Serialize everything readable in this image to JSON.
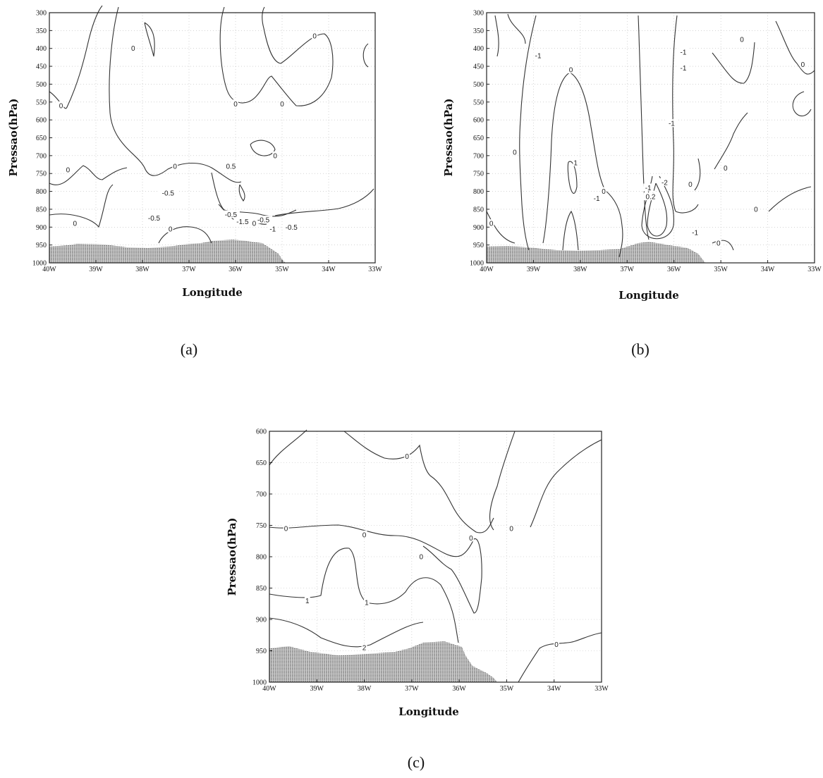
{
  "panel_labels": [
    "(a)",
    "(b)",
    "(c)"
  ],
  "chart_data": [
    {
      "type": "contour",
      "panel": "(a)",
      "xlabel": "Longitude",
      "ylabel": "Pressao(hPa)",
      "x_ticks": [
        "40W",
        "39W",
        "38W",
        "37W",
        "36W",
        "35W",
        "34W",
        "33W"
      ],
      "y_ticks": [
        "300",
        "350",
        "400",
        "450",
        "500",
        "550",
        "600",
        "650",
        "700",
        "750",
        "800",
        "850",
        "900",
        "950",
        "1000"
      ],
      "xlim": [
        -40,
        -33
      ],
      "ylim": [
        1000,
        300
      ],
      "contour_labels": [
        {
          "text": "0",
          "x": -39.75,
          "y": 560
        },
        {
          "text": "0",
          "x": -38.2,
          "y": 400
        },
        {
          "text": "0",
          "x": -36.0,
          "y": 555
        },
        {
          "text": "0",
          "x": -35.0,
          "y": 555
        },
        {
          "text": "0",
          "x": -34.3,
          "y": 365
        },
        {
          "text": "0",
          "x": -35.15,
          "y": 700
        },
        {
          "text": "0",
          "x": -39.6,
          "y": 740
        },
        {
          "text": "0",
          "x": -37.3,
          "y": 730
        },
        {
          "text": "0.5",
          "x": -36.1,
          "y": 730
        },
        {
          "text": "-0.5",
          "x": -37.45,
          "y": 805
        },
        {
          "text": "0",
          "x": -39.45,
          "y": 890
        },
        {
          "text": "-0.5",
          "x": -37.75,
          "y": 875
        },
        {
          "text": "-0.5",
          "x": -36.1,
          "y": 865
        },
        {
          "text": "-1.5",
          "x": -35.85,
          "y": 885
        },
        {
          "text": "-0.5",
          "x": -35.4,
          "y": 880
        },
        {
          "text": "-1",
          "x": -35.2,
          "y": 905
        },
        {
          "text": "-0.5",
          "x": -34.8,
          "y": 900
        },
        {
          "text": "0",
          "x": -35.6,
          "y": 890
        },
        {
          "text": "0",
          "x": -37.4,
          "y": 905
        }
      ]
    },
    {
      "type": "contour",
      "panel": "(b)",
      "xlabel": "Longitude",
      "ylabel": "Pressao(hPa)",
      "x_ticks": [
        "40W",
        "39W",
        "38W",
        "37W",
        "36W",
        "35W",
        "34W",
        "33W"
      ],
      "y_ticks": [
        "300",
        "350",
        "400",
        "450",
        "500",
        "550",
        "600",
        "650",
        "700",
        "750",
        "800",
        "850",
        "900",
        "950",
        "1000"
      ],
      "xlim": [
        -40,
        -33
      ],
      "ylim": [
        1000,
        300
      ],
      "contour_labels": [
        {
          "text": "-1",
          "x": -38.9,
          "y": 420
        },
        {
          "text": "0",
          "x": -38.2,
          "y": 460
        },
        {
          "text": "0",
          "x": -33.25,
          "y": 445
        },
        {
          "text": "0",
          "x": -34.55,
          "y": 375
        },
        {
          "text": "-1",
          "x": -35.8,
          "y": 410
        },
        {
          "text": "-1",
          "x": -35.8,
          "y": 455
        },
        {
          "text": "-1",
          "x": -36.05,
          "y": 610
        },
        {
          "text": "0",
          "x": -39.4,
          "y": 690
        },
        {
          "text": "1",
          "x": -38.1,
          "y": 720
        },
        {
          "text": "-1",
          "x": -37.65,
          "y": 820
        },
        {
          "text": "0",
          "x": -37.5,
          "y": 800
        },
        {
          "text": "0",
          "x": -34.9,
          "y": 735
        },
        {
          "text": "0",
          "x": -34.25,
          "y": 850
        },
        {
          "text": "-2",
          "x": -36.2,
          "y": 775
        },
        {
          "text": "0",
          "x": -35.65,
          "y": 780
        },
        {
          "text": "-1",
          "x": -36.55,
          "y": 790
        },
        {
          "text": "1",
          "x": -36.45,
          "y": 810
        },
        {
          "text": "0.2",
          "x": -36.5,
          "y": 815
        },
        {
          "text": "-1",
          "x": -35.55,
          "y": 915
        },
        {
          "text": "0",
          "x": -35.05,
          "y": 945
        },
        {
          "text": "0",
          "x": -39.9,
          "y": 890
        }
      ]
    },
    {
      "type": "contour",
      "panel": "(c)",
      "xlabel": "Longitude",
      "ylabel": "Pressao(hPa)",
      "x_ticks": [
        "40W",
        "39W",
        "38W",
        "37W",
        "36W",
        "35W",
        "34W",
        "33W"
      ],
      "y_ticks": [
        "600",
        "650",
        "700",
        "750",
        "800",
        "850",
        "900",
        "950",
        "1000"
      ],
      "xlim": [
        -40,
        -33
      ],
      "ylim": [
        1000,
        600
      ],
      "contour_labels": [
        {
          "text": "0",
          "x": -37.1,
          "y": 640
        },
        {
          "text": "0",
          "x": -39.65,
          "y": 755
        },
        {
          "text": "0",
          "x": -38.0,
          "y": 765
        },
        {
          "text": "0",
          "x": -36.8,
          "y": 800
        },
        {
          "text": "0",
          "x": -35.75,
          "y": 770
        },
        {
          "text": "0",
          "x": -34.9,
          "y": 755
        },
        {
          "text": "1",
          "x": -39.2,
          "y": 870
        },
        {
          "text": "1",
          "x": -37.95,
          "y": 873
        },
        {
          "text": "2",
          "x": -38.0,
          "y": 945
        },
        {
          "text": "0",
          "x": -33.95,
          "y": 940
        }
      ]
    }
  ]
}
